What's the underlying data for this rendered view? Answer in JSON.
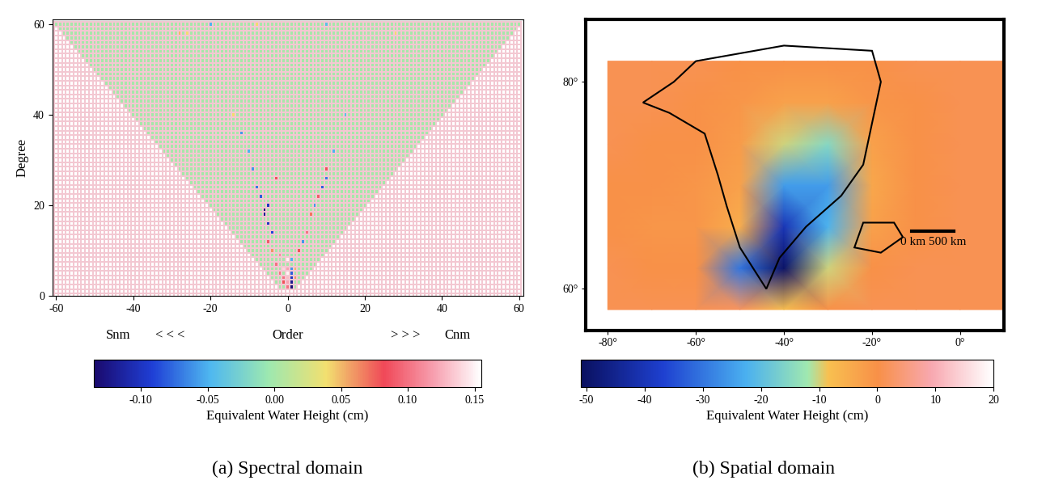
{
  "chart_data": [
    {
      "type": "heatmap",
      "caption": "(a) Spectral domain",
      "y_label": "Degree",
      "x_label_parts": [
        "Snm",
        "< < <",
        "Order",
        "> > >",
        "Cnm"
      ],
      "min_degree": 2,
      "max_degree": 60,
      "xlim": [
        -61,
        61
      ],
      "ylim": [
        0,
        61
      ],
      "xticks": [
        -60,
        -40,
        -20,
        0,
        20,
        40,
        60
      ],
      "yticks": [
        0,
        20,
        40,
        60
      ],
      "cells": [
        [
          0,
          2,
          0.1
        ],
        [
          1,
          2,
          -0.13
        ],
        [
          0,
          3,
          0.12
        ],
        [
          1,
          3,
          -0.12
        ],
        [
          -1,
          3,
          0.08
        ],
        [
          0,
          4,
          0.13
        ],
        [
          1,
          4,
          -0.1
        ],
        [
          -1,
          4,
          0.1
        ],
        [
          2,
          4,
          0.06
        ],
        [
          0,
          5,
          0.15
        ],
        [
          1,
          5,
          -0.08
        ],
        [
          -2,
          5,
          0.1
        ],
        [
          0,
          6,
          0.12
        ],
        [
          1,
          6,
          -0.06
        ],
        [
          -1,
          6,
          0.14
        ],
        [
          2,
          6,
          0.05
        ],
        [
          -3,
          7,
          0.1
        ],
        [
          0,
          8,
          0.15
        ],
        [
          1,
          8,
          -0.05
        ],
        [
          -2,
          9,
          0.11
        ],
        [
          -4,
          10,
          0.06
        ],
        [
          3,
          10,
          0.08
        ],
        [
          -5,
          12,
          0.09
        ],
        [
          4,
          12,
          -0.06
        ],
        [
          -4,
          14,
          -0.09
        ],
        [
          5,
          14,
          0.1
        ],
        [
          -5,
          16,
          -0.1
        ],
        [
          -6,
          18,
          -0.12
        ],
        [
          -6,
          19,
          -0.13
        ],
        [
          -5,
          20,
          -0.1
        ],
        [
          6,
          18,
          0.07
        ],
        [
          7,
          20,
          -0.06
        ],
        [
          -7,
          22,
          -0.08
        ],
        [
          8,
          22,
          0.09
        ],
        [
          -8,
          24,
          -0.07
        ],
        [
          9,
          24,
          -0.08
        ],
        [
          10,
          26,
          -0.07
        ],
        [
          -3,
          26,
          0.08
        ],
        [
          -9,
          28,
          -0.06
        ],
        [
          10,
          28,
          0.08
        ],
        [
          -10,
          32,
          -0.05
        ],
        [
          12,
          32,
          -0.05
        ],
        [
          -12,
          36,
          -0.06
        ],
        [
          -14,
          40,
          0.04
        ],
        [
          15,
          40,
          -0.04
        ],
        [
          -28,
          58,
          0.05
        ],
        [
          -26,
          58,
          0.04
        ],
        [
          28,
          58,
          0.04
        ],
        [
          -20,
          60,
          -0.05
        ],
        [
          -8,
          60,
          0.04
        ],
        [
          10,
          60,
          -0.04
        ]
      ],
      "colorbar": {
        "label": "Equivalent Water Height (cm)",
        "range": [
          -0.135,
          0.155
        ],
        "ticks": [
          {
            "value": -0.1,
            "label": "-0.10"
          },
          {
            "value": -0.05,
            "label": "-0.05"
          },
          {
            "value": 0,
            "label": "0.00"
          },
          {
            "value": 0.05,
            "label": "0.05"
          },
          {
            "value": 0.1,
            "label": "0.10"
          },
          {
            "value": 0.15,
            "label": "0.15"
          }
        ]
      }
    },
    {
      "type": "map",
      "caption": "(b) Spatial domain",
      "x": [
        -80,
        -70,
        -60,
        -50,
        -40,
        -30,
        -20,
        -10,
        0,
        10
      ],
      "y": [
        58,
        62,
        66,
        70,
        74,
        78,
        82
      ],
      "cells": [
        [
          1,
          1,
          1,
          2,
          -8,
          0,
          1,
          1,
          1,
          1
        ],
        [
          1,
          0,
          0,
          -30,
          -50,
          -10,
          0,
          1,
          1,
          1
        ],
        [
          0,
          -1,
          -1,
          -5,
          -40,
          -22,
          -3,
          0,
          1,
          1
        ],
        [
          0,
          0,
          -1,
          -3,
          -25,
          -25,
          -4,
          0,
          1,
          1
        ],
        [
          1,
          0,
          0,
          -2,
          -10,
          -15,
          -3,
          0,
          1,
          1
        ],
        [
          1,
          1,
          0,
          -1,
          -3,
          -3,
          -1,
          0,
          1,
          1
        ],
        [
          1,
          1,
          1,
          0,
          0,
          0,
          0,
          1,
          1,
          1
        ]
      ],
      "xlim": [
        -85,
        10
      ],
      "ylim": [
        56,
        86
      ],
      "xticks": [
        {
          "value": -80,
          "label": "-80°"
        },
        {
          "value": -60,
          "label": "-60°"
        },
        {
          "value": -40,
          "label": "-40°"
        },
        {
          "value": -20,
          "label": "-20°"
        },
        {
          "value": 0,
          "label": "0°"
        }
      ],
      "yticks": [
        {
          "value": 60,
          "label": "60°"
        },
        {
          "value": 80,
          "label": "80°"
        }
      ],
      "annotations": [
        "0 km 500 km"
      ],
      "colorbar": {
        "label": "Equivalent Water Height (cm)",
        "range": [
          -51,
          20
        ],
        "ticks": [
          -50,
          -40,
          -30,
          -20,
          -10,
          0,
          10,
          20
        ]
      }
    }
  ]
}
